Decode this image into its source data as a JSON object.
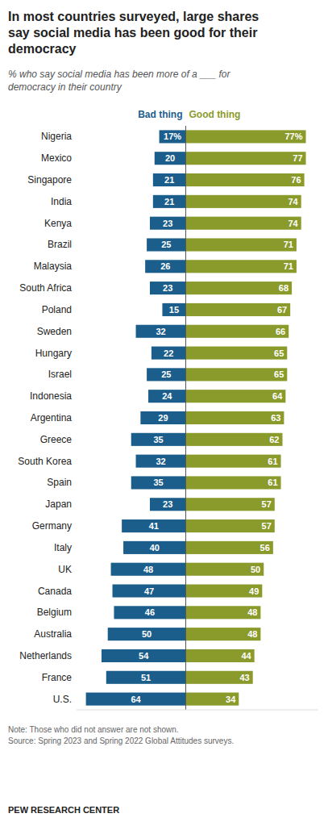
{
  "chart_data": {
    "type": "bar",
    "orientation": "horizontal",
    "title": "In most countries surveyed, large shares\nsay social media has been good for their\ndemocracy",
    "subtitle": "% who say social media has been more of a ___ for\ndemocracy in their country",
    "categories": [
      "Nigeria",
      "Mexico",
      "Singapore",
      "India",
      "Kenya",
      "Brazil",
      "Malaysia",
      "South Africa",
      "Poland",
      "Sweden",
      "Hungary",
      "Israel",
      "Indonesia",
      "Argentina",
      "Greece",
      "South Korea",
      "Spain",
      "Japan",
      "Germany",
      "Italy",
      "UK",
      "Canada",
      "Belgium",
      "Australia",
      "Netherlands",
      "France",
      "U.S."
    ],
    "series": [
      {
        "name": "Bad thing",
        "color": "#1B5E8C",
        "values": [
          17,
          20,
          21,
          21,
          23,
          25,
          26,
          23,
          15,
          32,
          22,
          25,
          24,
          29,
          35,
          32,
          35,
          23,
          41,
          40,
          48,
          47,
          46,
          50,
          54,
          51,
          64
        ],
        "value_labels": [
          "17%",
          "20",
          "21",
          "21",
          "23",
          "25",
          "26",
          "23",
          "15",
          "32",
          "22",
          "25",
          "24",
          "29",
          "35",
          "32",
          "35",
          "23",
          "41",
          "40",
          "48",
          "47",
          "46",
          "50",
          "54",
          "51",
          "64"
        ]
      },
      {
        "name": "Good thing",
        "color": "#8A9A2B",
        "values": [
          77,
          77,
          76,
          74,
          74,
          71,
          71,
          68,
          67,
          66,
          65,
          65,
          64,
          63,
          62,
          61,
          61,
          57,
          57,
          56,
          50,
          49,
          48,
          48,
          44,
          43,
          34
        ],
        "value_labels": [
          "77%",
          "77",
          "76",
          "74",
          "74",
          "71",
          "71",
          "68",
          "67",
          "66",
          "65",
          "65",
          "64",
          "63",
          "62",
          "61",
          "61",
          "57",
          "57",
          "56",
          "50",
          "49",
          "48",
          "48",
          "44",
          "43",
          "34"
        ]
      }
    ],
    "xlim": [
      -70,
      85
    ],
    "data_labels": true,
    "tick_labels": "y",
    "grid": false,
    "annotations": [
      "Note: Those who did not answer are not shown.\nSource: Spring 2023 and Spring 2022 Global Attitudes surveys.",
      "PEW RESEARCH CENTER"
    ]
  }
}
